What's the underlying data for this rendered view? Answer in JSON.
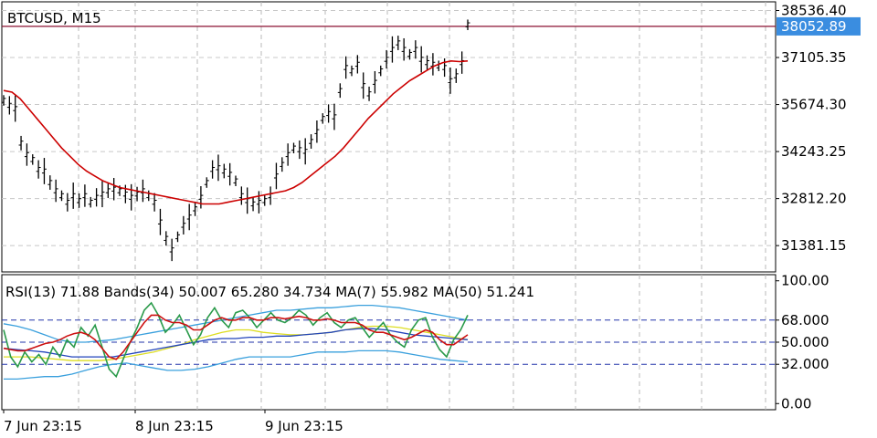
{
  "chart_data": [
    {
      "type": "line",
      "title": "BTCUSD, M15",
      "y_ticks": [
        "38536.40",
        "37105.35",
        "35674.30",
        "34243.25",
        "32812.20",
        "31381.15"
      ],
      "y_tick_values": [
        38536.4,
        37105.35,
        35674.3,
        34243.25,
        32812.2,
        31381.15
      ],
      "ylim": [
        30580,
        38800
      ],
      "current_price": "38052.89",
      "current_price_value": 38052.89,
      "grid": true,
      "series": [
        {
          "color": "#000000",
          "values": [
            35800,
            35650,
            35550,
            34500,
            34150,
            34000,
            33700,
            33650,
            33300,
            33050,
            32900,
            32700,
            32900,
            32750,
            32900,
            32700,
            32850,
            32950,
            33050,
            33100,
            33050,
            32950,
            32850,
            32950,
            33050,
            32900,
            32700,
            32100,
            31600,
            31250,
            31650,
            32000,
            32250,
            32500,
            32850,
            33300,
            33700,
            33750,
            33650,
            33550,
            33350,
            32900,
            32750,
            32650,
            32700,
            32750,
            32900,
            33500,
            33850,
            34150,
            34350,
            34300,
            34250,
            34550,
            34850,
            35250,
            35400,
            35300,
            36100,
            36800,
            36700,
            36900,
            36250,
            36000,
            36350,
            36700,
            37050,
            37350,
            37550,
            37350,
            37200,
            37350,
            37050,
            36950,
            36900,
            36850,
            36800,
            36400,
            36550,
            36950,
            38100
          ]
        },
        {
          "color": "#cc0000",
          "values": [
            36100,
            36050,
            35850,
            35550,
            35250,
            34950,
            34650,
            34350,
            34100,
            33850,
            33650,
            33500,
            33350,
            33250,
            33150,
            33100,
            33050,
            33000,
            32950,
            32900,
            32850,
            32800,
            32750,
            32700,
            32650,
            32650,
            32650,
            32700,
            32750,
            32800,
            32850,
            32900,
            32950,
            33000,
            33050,
            33150,
            33300,
            33500,
            33700,
            33900,
            34100,
            34350,
            34650,
            34950,
            35250,
            35500,
            35750,
            36000,
            36200,
            36400,
            36550,
            36700,
            36850,
            36950,
            37000,
            36980,
            37000
          ]
        }
      ]
    },
    {
      "type": "line",
      "title": "RSI(13) 71.88 Bands(34) 50.007 65.280 34.734 MA(7) 55.982 MA(50) 51.241",
      "y_ticks": [
        "100.00",
        "68.000",
        "50.000",
        "32.000",
        "0.00"
      ],
      "y_tick_values": [
        100,
        68,
        50,
        32,
        0
      ],
      "ylim": [
        -5,
        105
      ],
      "levels": [
        68,
        50,
        32
      ],
      "x_labels": [
        "7 Jun 23:15",
        "8 Jun 23:15",
        "9 Jun 23:15"
      ],
      "grid": true,
      "series": [
        {
          "color": "#3aa0dd",
          "values": [
            65,
            63,
            60,
            56,
            52,
            50,
            50,
            51,
            52,
            54,
            56,
            58,
            60,
            62,
            64,
            66,
            68,
            70,
            72,
            74,
            76,
            76,
            77,
            78,
            78,
            79,
            80,
            80,
            79,
            78,
            76,
            74,
            72,
            70,
            68
          ]
        },
        {
          "color": "#3aa0dd",
          "values": [
            20,
            20,
            21,
            22,
            22,
            24,
            27,
            30,
            32,
            33,
            31,
            29,
            27,
            27,
            28,
            30,
            33,
            36,
            38,
            38,
            38,
            38,
            40,
            42,
            42,
            42,
            43,
            43,
            43,
            42,
            40,
            38,
            36,
            35,
            34
          ]
        },
        {
          "color": "#dddd22",
          "values": [
            38,
            38,
            38,
            37,
            36,
            35,
            35,
            35,
            36,
            38,
            40,
            42,
            45,
            48,
            52,
            55,
            58,
            60,
            60,
            58,
            57,
            56,
            56,
            57,
            58,
            60,
            62,
            63,
            63,
            62,
            60,
            58,
            56,
            54,
            52
          ]
        },
        {
          "color": "#2244bb",
          "values": [
            45,
            44,
            43,
            42,
            40,
            38,
            38,
            38,
            38,
            40,
            42,
            44,
            46,
            48,
            50,
            52,
            53,
            53,
            54,
            54,
            55,
            55,
            56,
            57,
            58,
            60,
            61,
            61,
            60,
            58,
            56,
            55,
            54,
            53,
            52
          ]
        },
        {
          "color": "#2a9a4a",
          "values": [
            60,
            38,
            30,
            42,
            34,
            40,
            32,
            46,
            38,
            52,
            46,
            62,
            55,
            64,
            46,
            28,
            22,
            36,
            50,
            62,
            76,
            82,
            72,
            58,
            64,
            72,
            60,
            48,
            56,
            70,
            78,
            68,
            62,
            74,
            76,
            70,
            62,
            68,
            74,
            68,
            66,
            70,
            76,
            72,
            64,
            70,
            74,
            66,
            62,
            68,
            70,
            62,
            54,
            60,
            66,
            56,
            50,
            46,
            60,
            68,
            70,
            54,
            44,
            38,
            52,
            60,
            72
          ]
        },
        {
          "color": "#cc1111",
          "values": [
            45,
            44,
            43,
            43,
            45,
            47,
            49,
            50,
            52,
            55,
            57,
            58,
            56,
            52,
            45,
            38,
            36,
            42,
            50,
            58,
            66,
            72,
            72,
            68,
            66,
            66,
            64,
            60,
            60,
            64,
            68,
            70,
            68,
            68,
            70,
            70,
            68,
            68,
            70,
            70,
            69,
            70,
            71,
            70,
            68,
            68,
            69,
            68,
            66,
            66,
            66,
            64,
            60,
            58,
            58,
            56,
            54,
            52,
            54,
            57,
            60,
            58,
            52,
            48,
            48,
            52,
            56
          ]
        }
      ]
    }
  ]
}
